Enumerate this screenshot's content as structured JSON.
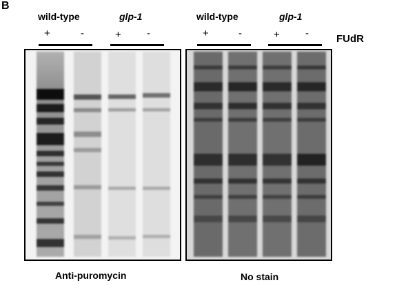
{
  "panel_letter": "B",
  "left_panel": {
    "group1_label": "wild-type",
    "group2_label": "glp-1",
    "lane_signs": [
      "+",
      "-",
      "+",
      "-"
    ],
    "caption": "Anti-puromycin"
  },
  "right_panel": {
    "group1_label": "wild-type",
    "group2_label": "glp-1",
    "lane_signs": [
      "+",
      "-",
      "+",
      "-"
    ],
    "caption": "No stain"
  },
  "treatment_label": "FUdR"
}
